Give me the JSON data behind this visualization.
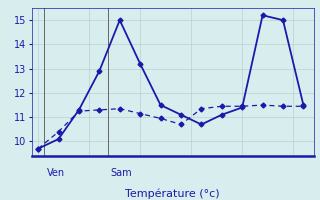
{
  "line1_x": [
    0,
    1,
    2,
    3,
    4,
    5,
    6,
    7,
    8,
    9,
    10,
    11,
    12,
    13
  ],
  "line1_y": [
    9.7,
    10.1,
    11.3,
    12.9,
    15.0,
    13.2,
    11.5,
    11.1,
    10.7,
    11.1,
    11.4,
    15.2,
    15.0,
    11.5
  ],
  "line2_x": [
    0,
    1,
    2,
    3,
    4,
    5,
    6,
    7,
    8,
    9,
    10,
    11,
    12,
    13
  ],
  "line2_y": [
    9.7,
    10.4,
    11.25,
    11.3,
    11.35,
    11.15,
    10.95,
    10.7,
    11.35,
    11.45,
    11.45,
    11.5,
    11.45,
    11.45
  ],
  "ven_x": 0.3,
  "sam_x": 3.4,
  "xlabel": "Température (°c)",
  "ylim": [
    9.4,
    15.5
  ],
  "xlim": [
    -0.3,
    13.5
  ],
  "yticks": [
    10,
    11,
    12,
    13,
    14,
    15
  ],
  "bg_color": "#d8eeee",
  "grid_color": "#b8d0d0",
  "line_color": "#1a1aaa",
  "vline_color": "#666666",
  "ven_label": "Ven",
  "sam_label": "Sam",
  "label_fontsize": 7,
  "xlabel_fontsize": 8,
  "ytick_fontsize": 7,
  "marker": "D",
  "markersize": 2.5,
  "line1_lw": 1.3,
  "line2_lw": 0.9,
  "line2_dash": [
    4,
    3
  ]
}
